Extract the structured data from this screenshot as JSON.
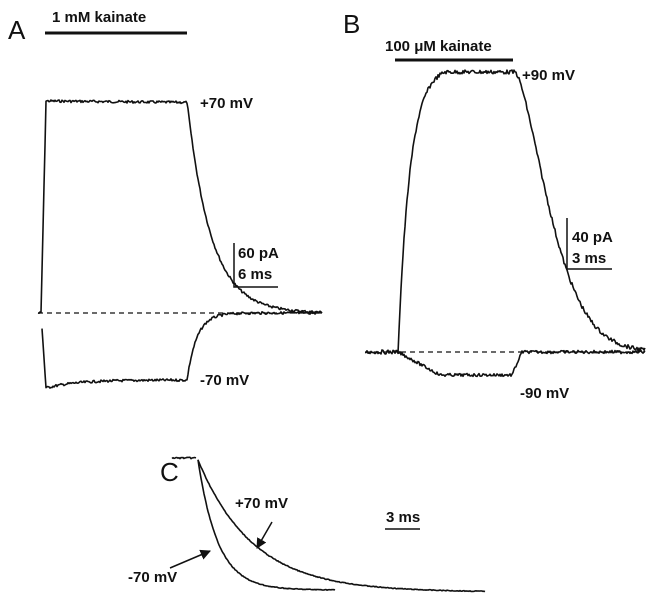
{
  "panels": [
    {
      "letter": "A",
      "drug": "1 mM kainate",
      "upper_label": "+70 mV",
      "lower_label": "-70 mV",
      "scale_current": "60 pA",
      "scale_time": "6 ms"
    },
    {
      "letter": "B",
      "drug": "100 μM kainate",
      "upper_label": "+90 mV",
      "lower_label": "-90 mV",
      "scale_current": "40 pA",
      "scale_time": "3 ms"
    },
    {
      "letter": "C",
      "upper_label": "+70 mV",
      "lower_label": "-70 mV",
      "scale_time": "3 ms"
    }
  ]
}
